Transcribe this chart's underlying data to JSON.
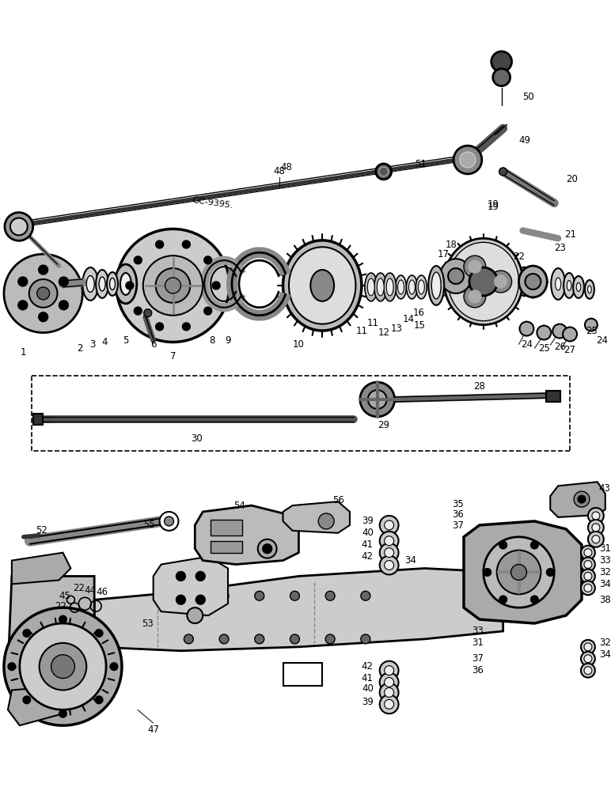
{
  "bg_color": "#ffffff",
  "fig_width": 7.72,
  "fig_height": 10.0,
  "dpi": 100,
  "line_color": "#000000",
  "label_fontsize": 8.5
}
